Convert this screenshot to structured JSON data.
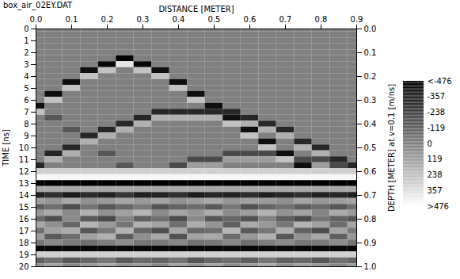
{
  "chart_data": {
    "type": "heatmap",
    "title": "box_air_02EY.DAT",
    "x_label": "DISTANCE [METER]",
    "y_label": "TIME [ns]",
    "y2_label": "DEPTH [METER] at v=0.1 [m/ns]",
    "x": [
      0,
      0.05,
      0.1,
      0.15,
      0.2,
      0.25,
      0.3,
      0.35,
      0.4,
      0.45,
      0.5,
      0.55,
      0.6,
      0.65,
      0.7,
      0.75,
      0.8,
      0.85,
      0.9
    ],
    "y": [
      0,
      0.5,
      1,
      1.5,
      2,
      2.5,
      3,
      3.5,
      4,
      4.5,
      5,
      5.5,
      6,
      6.5,
      7,
      7.5,
      8,
      8.5,
      9,
      9.5,
      10,
      10.5,
      11,
      11.5,
      12,
      12.5,
      13,
      13.5,
      14,
      14.5,
      15,
      15.5,
      16,
      16.5,
      17,
      17.5,
      18,
      18.5,
      19,
      19.5,
      20
    ],
    "values": [
      [
        0,
        0,
        0,
        0,
        0,
        0,
        0,
        0,
        0,
        0,
        0,
        0,
        0,
        0,
        0,
        0,
        0,
        0,
        0
      ],
      [
        0,
        0,
        0,
        0,
        0,
        0,
        0,
        0,
        0,
        0,
        0,
        0,
        0,
        0,
        0,
        0,
        0,
        0,
        0
      ],
      [
        0,
        0,
        0,
        0,
        0,
        0,
        0,
        0,
        0,
        0,
        0,
        0,
        0,
        0,
        0,
        0,
        0,
        0,
        0
      ],
      [
        0,
        0,
        0,
        0,
        0,
        0,
        0,
        0,
        0,
        0,
        0,
        0,
        0,
        0,
        0,
        0,
        0,
        0,
        0
      ],
      [
        0,
        0,
        0,
        0,
        0,
        0,
        0,
        0,
        0,
        0,
        0,
        0,
        0,
        0,
        0,
        0,
        0,
        0,
        0
      ],
      [
        0,
        0,
        0,
        0,
        0,
        -476,
        0,
        0,
        0,
        0,
        0,
        0,
        0,
        0,
        0,
        0,
        0,
        0,
        0
      ],
      [
        0,
        0,
        0,
        0,
        -450,
        380,
        -450,
        0,
        0,
        0,
        0,
        0,
        0,
        0,
        0,
        0,
        0,
        0,
        0
      ],
      [
        0,
        0,
        0,
        -420,
        250,
        0,
        250,
        -420,
        0,
        0,
        0,
        0,
        0,
        0,
        0,
        0,
        0,
        0,
        0
      ],
      [
        0,
        0,
        0,
        250,
        0,
        0,
        0,
        250,
        0,
        0,
        0,
        0,
        0,
        0,
        0,
        0,
        0,
        0,
        0
      ],
      [
        0,
        0,
        -420,
        0,
        0,
        0,
        0,
        0,
        -420,
        0,
        0,
        0,
        0,
        0,
        0,
        0,
        0,
        0,
        0
      ],
      [
        0,
        0,
        250,
        0,
        0,
        0,
        0,
        0,
        250,
        0,
        0,
        0,
        0,
        0,
        0,
        0,
        0,
        0,
        0
      ],
      [
        0,
        -420,
        0,
        0,
        0,
        0,
        0,
        0,
        0,
        -420,
        0,
        0,
        0,
        0,
        0,
        0,
        0,
        0,
        0
      ],
      [
        0,
        250,
        0,
        0,
        0,
        0,
        0,
        0,
        0,
        250,
        0,
        0,
        0,
        0,
        0,
        0,
        0,
        0,
        0
      ],
      [
        -420,
        0,
        0,
        0,
        0,
        0,
        0,
        0,
        0,
        0,
        -420,
        0,
        0,
        0,
        0,
        0,
        0,
        0,
        0
      ],
      [
        250,
        0,
        0,
        0,
        0,
        0,
        0,
        -330,
        -330,
        -330,
        -330,
        -330,
        0,
        0,
        0,
        0,
        0,
        0,
        0
      ],
      [
        0,
        -150,
        0,
        0,
        0,
        0,
        -330,
        180,
        180,
        180,
        180,
        -420,
        -330,
        0,
        0,
        0,
        0,
        0,
        0
      ],
      [
        0,
        0,
        0,
        0,
        0,
        -330,
        180,
        0,
        0,
        0,
        0,
        250,
        180,
        -330,
        0,
        0,
        0,
        0,
        0
      ],
      [
        0,
        0,
        -150,
        0,
        -330,
        180,
        0,
        0,
        0,
        0,
        0,
        0,
        -420,
        180,
        -330,
        0,
        0,
        0,
        0
      ],
      [
        0,
        0,
        0,
        -330,
        180,
        0,
        0,
        0,
        0,
        0,
        0,
        0,
        250,
        0,
        180,
        0,
        0,
        0,
        0
      ],
      [
        0,
        0,
        0,
        180,
        0,
        0,
        0,
        0,
        0,
        0,
        0,
        0,
        0,
        -420,
        0,
        -330,
        0,
        0,
        0
      ],
      [
        0,
        0,
        -330,
        0,
        0,
        0,
        0,
        0,
        0,
        0,
        0,
        0,
        0,
        250,
        0,
        180,
        -330,
        0,
        0
      ],
      [
        0,
        -330,
        180,
        0,
        -150,
        0,
        0,
        0,
        0,
        0,
        0,
        -200,
        -200,
        -200,
        -420,
        0,
        180,
        0,
        0
      ],
      [
        0,
        180,
        0,
        0,
        0,
        0,
        0,
        0,
        0,
        -200,
        -200,
        110,
        110,
        110,
        250,
        -200,
        -200,
        -330,
        0
      ],
      [
        -330,
        0,
        0,
        0,
        0,
        -150,
        0,
        0,
        -200,
        110,
        110,
        0,
        0,
        0,
        0,
        -420,
        110,
        -200,
        -330
      ],
      [
        300,
        300,
        300,
        300,
        300,
        300,
        300,
        300,
        300,
        300,
        300,
        300,
        300,
        300,
        300,
        300,
        300,
        300,
        300
      ],
      [
        450,
        450,
        450,
        450,
        450,
        450,
        450,
        450,
        450,
        450,
        450,
        450,
        450,
        450,
        450,
        450,
        450,
        450,
        450
      ],
      [
        -476,
        -476,
        -476,
        -476,
        -476,
        -476,
        -476,
        -476,
        -476,
        -476,
        -476,
        -476,
        -476,
        -476,
        -476,
        -476,
        -476,
        -476,
        -476
      ],
      [
        150,
        150,
        150,
        150,
        150,
        150,
        150,
        150,
        150,
        150,
        150,
        150,
        150,
        150,
        150,
        150,
        150,
        150,
        150
      ],
      [
        -350,
        -300,
        -380,
        -320,
        -350,
        -280,
        -360,
        -340,
        -300,
        -370,
        -330,
        -350,
        -310,
        -360,
        -340,
        -300,
        -350,
        -330,
        -360
      ],
      [
        120,
        80,
        150,
        60,
        100,
        140,
        90,
        130,
        70,
        110,
        150,
        80,
        120,
        100,
        60,
        140,
        90,
        110,
        130
      ],
      [
        -120,
        -60,
        -180,
        -40,
        -150,
        -90,
        -20,
        -160,
        -110,
        -70,
        -140,
        -30,
        -170,
        -100,
        -50,
        -130,
        -80,
        -150,
        -60
      ],
      [
        90,
        150,
        30,
        180,
        60,
        120,
        200,
        40,
        140,
        80,
        170,
        50,
        110,
        190,
        70,
        130,
        20,
        160,
        100
      ],
      [
        -80,
        -180,
        40,
        -140,
        -200,
        20,
        -120,
        -60,
        -190,
        30,
        -150,
        -90,
        -170,
        10,
        -130,
        -200,
        -40,
        -110,
        -160
      ],
      [
        150,
        60,
        -90,
        200,
        100,
        -40,
        180,
        130,
        -60,
        170,
        80,
        -120,
        160,
        90,
        -30,
        190,
        120,
        -70,
        140
      ],
      [
        -60,
        120,
        170,
        -150,
        -30,
        190,
        -100,
        -180,
        140,
        -90,
        -60,
        200,
        -140,
        -40,
        170,
        -110,
        -190,
        130,
        -20
      ],
      [
        110,
        -140,
        -60,
        120,
        180,
        -130,
        60,
        150,
        -170,
        130,
        160,
        -80,
        90,
        180,
        -150,
        70,
        150,
        -120,
        90
      ],
      [
        -30,
        40,
        -20,
        -60,
        -10,
        50,
        -40,
        -20,
        30,
        -50,
        -30,
        20,
        -60,
        -10,
        40,
        -30,
        -20,
        50,
        -40
      ],
      [
        -450,
        -450,
        -450,
        -450,
        -450,
        -450,
        -450,
        -450,
        -450,
        -450,
        -450,
        -450,
        -450,
        -450,
        -450,
        -450,
        -450,
        -450,
        -450
      ],
      [
        300,
        300,
        300,
        300,
        300,
        300,
        300,
        300,
        300,
        300,
        300,
        300,
        300,
        300,
        300,
        300,
        300,
        300,
        300
      ],
      [
        -120,
        -60,
        -150,
        -90,
        -30,
        -140,
        -80,
        -110,
        -50,
        -160,
        -100,
        -70,
        -130,
        -40,
        -120,
        -90,
        -150,
        -60,
        -100
      ],
      [
        60,
        120,
        40,
        90,
        150,
        70,
        110,
        30,
        130,
        80,
        140,
        50,
        100,
        160,
        60,
        120,
        90,
        40,
        110
      ]
    ],
    "xlim": [
      0,
      0.9
    ],
    "xticks": [
      {
        "value": 0,
        "label": "0.0"
      },
      0.1,
      0.2,
      0.3,
      0.4,
      0.5,
      0.6,
      0.7,
      0.8,
      0.9
    ],
    "ylim": [
      0,
      20
    ],
    "yticks": [
      0,
      1,
      2,
      3,
      4,
      5,
      6,
      7,
      8,
      9,
      10,
      11,
      12,
      13,
      14,
      15,
      16,
      17,
      18,
      19,
      20
    ],
    "y2lim": [
      0,
      1
    ],
    "y2ticks": [
      {
        "value": 0,
        "label": "0.0"
      },
      0.1,
      0.2,
      0.3,
      0.4,
      0.5,
      0.6,
      0.7,
      0.8,
      0.9,
      {
        "value": 1,
        "label": "1.0"
      }
    ],
    "colorbar": {
      "range": [
        -476,
        476
      ],
      "ticks": [
        {
          "value": -476,
          "label": "<-476"
        },
        -357,
        -238,
        -119,
        0,
        119,
        238,
        357,
        {
          "value": 476,
          "label": ">476"
        }
      ],
      "colors": [
        "#000000",
        "#ffffff"
      ]
    }
  }
}
